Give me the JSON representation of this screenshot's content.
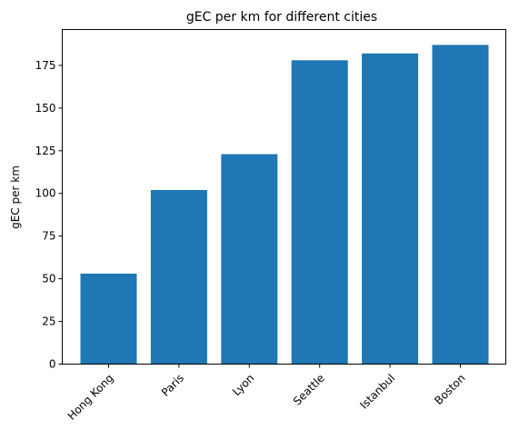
{
  "chart_data": {
    "type": "bar",
    "title": "gEC per km for different cities",
    "xlabel": "",
    "ylabel": "gEC per km",
    "categories": [
      "Hong Kong",
      "Paris",
      "Lyon",
      "Seattle",
      "Istanbul",
      "Boston"
    ],
    "values": [
      53,
      102,
      123,
      178,
      182,
      187
    ],
    "ylim": [
      0,
      196
    ],
    "yticks": [
      0,
      25,
      50,
      75,
      100,
      125,
      150,
      175
    ],
    "grid": false,
    "bar_color": "#1f77b4",
    "x_tick_rotation": "45 degrees"
  }
}
